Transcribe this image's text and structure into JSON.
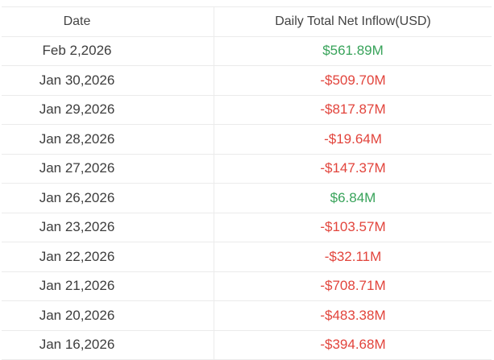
{
  "colors": {
    "positive": "#38a35a",
    "negative": "#e2443c",
    "text": "#3d3d3d",
    "header_text": "#434343",
    "border": "#ebebeb",
    "background": "#ffffff"
  },
  "table": {
    "columns": [
      {
        "key": "date",
        "label": "Date"
      },
      {
        "key": "inflow",
        "label": "Daily Total Net Inflow(USD)"
      }
    ],
    "rows": [
      {
        "date": "Feb 2,2026",
        "inflow": "$561.89M",
        "direction": "positive"
      },
      {
        "date": "Jan 30,2026",
        "inflow": "-$509.70M",
        "direction": "negative"
      },
      {
        "date": "Jan 29,2026",
        "inflow": "-$817.87M",
        "direction": "negative"
      },
      {
        "date": "Jan 28,2026",
        "inflow": "-$19.64M",
        "direction": "negative"
      },
      {
        "date": "Jan 27,2026",
        "inflow": "-$147.37M",
        "direction": "negative"
      },
      {
        "date": "Jan 26,2026",
        "inflow": "$6.84M",
        "direction": "positive"
      },
      {
        "date": "Jan 23,2026",
        "inflow": "-$103.57M",
        "direction": "negative"
      },
      {
        "date": "Jan 22,2026",
        "inflow": "-$32.11M",
        "direction": "negative"
      },
      {
        "date": "Jan 21,2026",
        "inflow": "-$708.71M",
        "direction": "negative"
      },
      {
        "date": "Jan 20,2026",
        "inflow": "-$483.38M",
        "direction": "negative"
      },
      {
        "date": "Jan 16,2026",
        "inflow": "-$394.68M",
        "direction": "negative"
      }
    ]
  },
  "chart_data": {
    "type": "table",
    "title": "Daily Total Net Inflow(USD)",
    "columns": [
      "Date",
      "Daily Total Net Inflow(USD)"
    ],
    "dates": [
      "Feb 2,2026",
      "Jan 30,2026",
      "Jan 29,2026",
      "Jan 28,2026",
      "Jan 27,2026",
      "Jan 26,2026",
      "Jan 23,2026",
      "Jan 22,2026",
      "Jan 21,2026",
      "Jan 20,2026",
      "Jan 16,2026"
    ],
    "net_inflow_musd": [
      561.89,
      -509.7,
      -817.87,
      -19.64,
      -147.37,
      6.84,
      -103.57,
      -32.11,
      -708.71,
      -483.38,
      -394.68
    ],
    "display_values": [
      "$561.89M",
      "-$509.70M",
      "-$817.87M",
      "-$19.64M",
      "-$147.37M",
      "$6.84M",
      "-$103.57M",
      "-$32.11M",
      "-$708.71M",
      "-$483.38M",
      "-$394.68M"
    ],
    "positive_color": "#38a35a",
    "negative_color": "#e2443c"
  }
}
